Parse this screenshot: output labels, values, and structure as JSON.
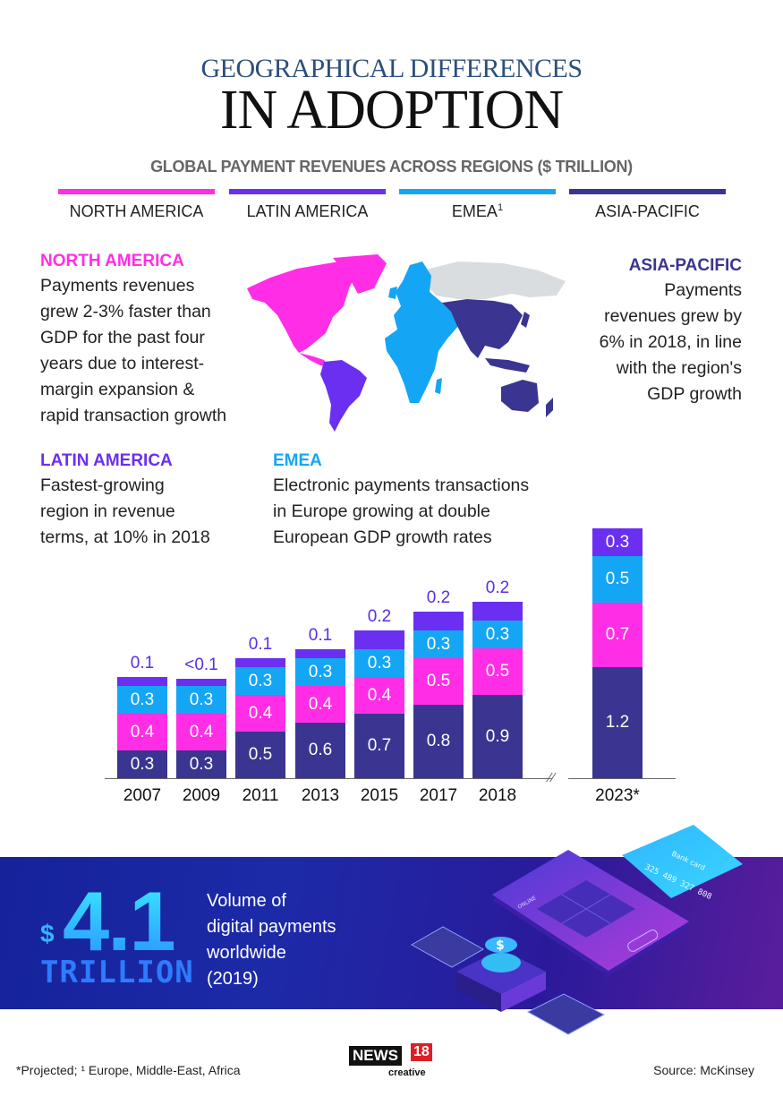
{
  "header": {
    "title_line1": "GEOGRAPHICAL DIFFERENCES",
    "title_line2": "IN ADOPTION",
    "subtitle": "GLOBAL PAYMENT REVENUES ACROSS REGIONS ($ TRILLION)"
  },
  "legend": [
    {
      "label": "NORTH AMERICA",
      "color": "#ff2ee6",
      "sup": ""
    },
    {
      "label": "LATIN AMERICA",
      "color": "#6a2ff0",
      "sup": ""
    },
    {
      "label": "EMEA",
      "color": "#14a6f5",
      "sup": "1"
    },
    {
      "label": "ASIA-PACIFIC",
      "color": "#3a3590",
      "sup": ""
    }
  ],
  "regions": {
    "north_america": {
      "heading": "NORTH AMERICA",
      "lines": [
        "Payments revenues",
        "grew 2-3% faster than",
        "GDP for the past four",
        "years due to interest-",
        "margin expansion &",
        "rapid transaction growth"
      ]
    },
    "asia_pacific": {
      "heading": "ASIA-PACIFIC",
      "lines": [
        "Payments",
        "revenues grew by",
        "6% in 2018, in line",
        "with the region's",
        "GDP growth"
      ]
    },
    "latin_america": {
      "heading": "LATIN AMERICA",
      "lines": [
        "Fastest-growing",
        "region in revenue",
        "terms, at 10% in 2018"
      ]
    },
    "emea": {
      "heading": "EMEA",
      "lines": [
        "Electronic payments transactions",
        "in Europe growing at double",
        "European GDP growth rates"
      ]
    }
  },
  "chart_data": {
    "type": "bar",
    "stacked": true,
    "title": "Global payment revenues across regions ($ trillion)",
    "xlabel": "",
    "ylabel": "$ trillion",
    "categories": [
      "2007",
      "2009",
      "2011",
      "2013",
      "2015",
      "2017",
      "2018",
      "2023*"
    ],
    "series": [
      {
        "name": "Asia-Pacific",
        "color": "#3a3590",
        "values": [
          0.3,
          0.3,
          0.5,
          0.6,
          0.7,
          0.8,
          0.9,
          1.2
        ],
        "labels": [
          "0.3",
          "0.3",
          "0.5",
          "0.6",
          "0.7",
          "0.8",
          "0.9",
          "1.2"
        ]
      },
      {
        "name": "North America",
        "color": "#ff2ee6",
        "values": [
          0.4,
          0.4,
          0.4,
          0.4,
          0.4,
          0.5,
          0.5,
          0.7
        ],
        "labels": [
          "0.4",
          "0.4",
          "0.4",
          "0.4",
          "0.4",
          "0.5",
          "0.5",
          "0.7"
        ]
      },
      {
        "name": "EMEA",
        "color": "#14a6f5",
        "values": [
          0.3,
          0.3,
          0.3,
          0.3,
          0.3,
          0.3,
          0.3,
          0.5
        ],
        "labels": [
          "0.3",
          "0.3",
          "0.3",
          "0.3",
          "0.3",
          "0.3",
          "0.3",
          "0.5"
        ]
      },
      {
        "name": "Latin America",
        "color": "#6a2ff0",
        "values": [
          0.1,
          0.05,
          0.1,
          0.1,
          0.2,
          0.2,
          0.2,
          0.3
        ],
        "labels": [
          "0.1",
          "<0.1",
          "0.1",
          "0.1",
          "0.2",
          "0.2",
          "0.2",
          "0.3"
        ]
      }
    ],
    "annotations": [
      "2023* = Projected",
      "Axis break between 2018 and 2023*"
    ],
    "grid": false,
    "legend_position": "top"
  },
  "banner": {
    "currency": "$",
    "amount": "4.1",
    "unit": "TRILLION",
    "text_lines": [
      "Volume of",
      "digital payments",
      "worldwide",
      "(2019)"
    ],
    "illustration": {
      "card_title": "Bank card",
      "card_number": "325 489 327 808",
      "screen_label": "ONLINE",
      "screen_sub": "payment system",
      "button": "APPLY"
    }
  },
  "footer": {
    "note": "*Projected; ¹ Europe, Middle-East, Africa",
    "source": "Source: McKinsey",
    "logo_news": "NEWS",
    "logo_num": "18",
    "logo_sub": "creative"
  }
}
